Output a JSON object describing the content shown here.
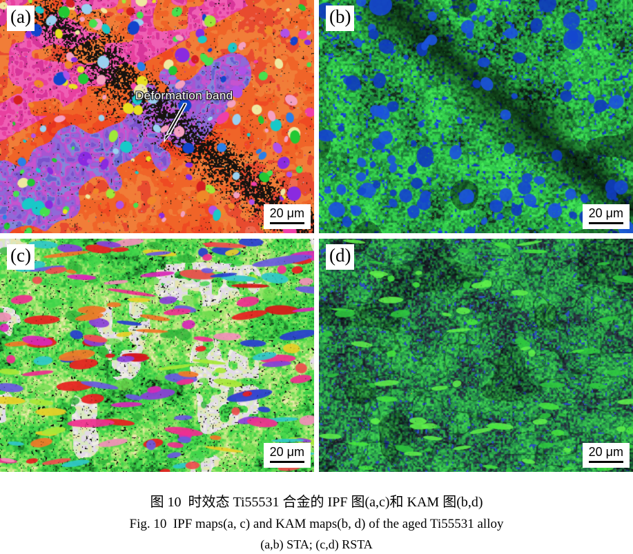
{
  "figure": {
    "panels": [
      {
        "id": "a",
        "label": "(a)",
        "map_type": "IPF",
        "treatment": "STA",
        "scale_bar": "20 μm",
        "annotation": "Deformation band"
      },
      {
        "id": "b",
        "label": "(b)",
        "map_type": "KAM",
        "treatment": "STA",
        "scale_bar": "20 μm"
      },
      {
        "id": "c",
        "label": "(c)",
        "map_type": "IPF",
        "treatment": "RSTA",
        "scale_bar": "20 μm"
      },
      {
        "id": "d",
        "label": "(d)",
        "map_type": "KAM",
        "treatment": "RSTA",
        "scale_bar": "20 μm"
      }
    ],
    "caption": {
      "line_zh": "图 10  时效态 Ti55531 合金的 IPF 图(a,c)和 KAM 图(b,d)",
      "line_en": "Fig. 10  IPF maps(a, c) and KAM maps(b, d) of the aged Ti55531 alloy",
      "line_sub": "(a,b) STA; (c,d) RSTA"
    },
    "colors": {
      "ipf_sta_base": [
        "#d92818",
        "#e63320",
        "#ef4a22",
        "#f06428",
        "#f17d38",
        "#e84b2f",
        "#ee6a50",
        "#f28d72"
      ],
      "ipf_sta_purple": [
        "#7b51cc",
        "#8f6ad8",
        "#a855d2",
        "#c653cf",
        "#8486da",
        "#6a5fd0"
      ],
      "ipf_sta_magenta": [
        "#e8409f",
        "#ef5fb4",
        "#d8359a"
      ],
      "grain_colors": [
        "#22c833",
        "#46e04e",
        "#1244cc",
        "#2a7fe8",
        "#19c8c8",
        "#8a2ae0",
        "#b050e8",
        "#e8e020",
        "#a0e838",
        "#ef3fa8",
        "#f5a0c0",
        "#f08828",
        "#efe8a0",
        "#9ad0f0",
        "#d42020"
      ],
      "kam_sta_base": [
        "#14301e",
        "#1d7a38",
        "#28a844",
        "#33cf4d",
        "#43e457"
      ],
      "kam_blue": [
        "#0f3cbe",
        "#1547cf",
        "#1b54dd"
      ],
      "ipf_rsta_base": [
        "#151a0f",
        "#217f2c",
        "#30b43c",
        "#40d54c",
        "#63da50",
        "#92e368",
        "#bce87e",
        "#e9e9ac"
      ],
      "ipf_rsta_pale": [
        "#e8e4b0",
        "#d9e9c2",
        "#e2d9e9",
        "#efefe2"
      ],
      "ipf_rsta_grains": [
        "#e82020",
        "#d41818",
        "#ef2f8f",
        "#d828b8",
        "#8a3fd8",
        "#6a5ae0",
        "#2a3fd0",
        "#f07828",
        "#ef4f4f",
        "#f090b8",
        "#30c8c8",
        "#a8e838",
        "#e8d028",
        "#e82020",
        "#ef2f8f"
      ],
      "ipf_rsta_green_blobs": [
        "#3ed44a",
        "#6fdc4f",
        "#2fb33a"
      ],
      "kam_rsta_base": [
        "#1c2630",
        "#283a42",
        "#1e6e48",
        "#289a4a",
        "#32b84e",
        "#3fd052"
      ],
      "kam_rsta_bright": [
        "#46e83f",
        "#5ff04a",
        "#2fc83f"
      ],
      "band_dark": "#17130f"
    }
  }
}
